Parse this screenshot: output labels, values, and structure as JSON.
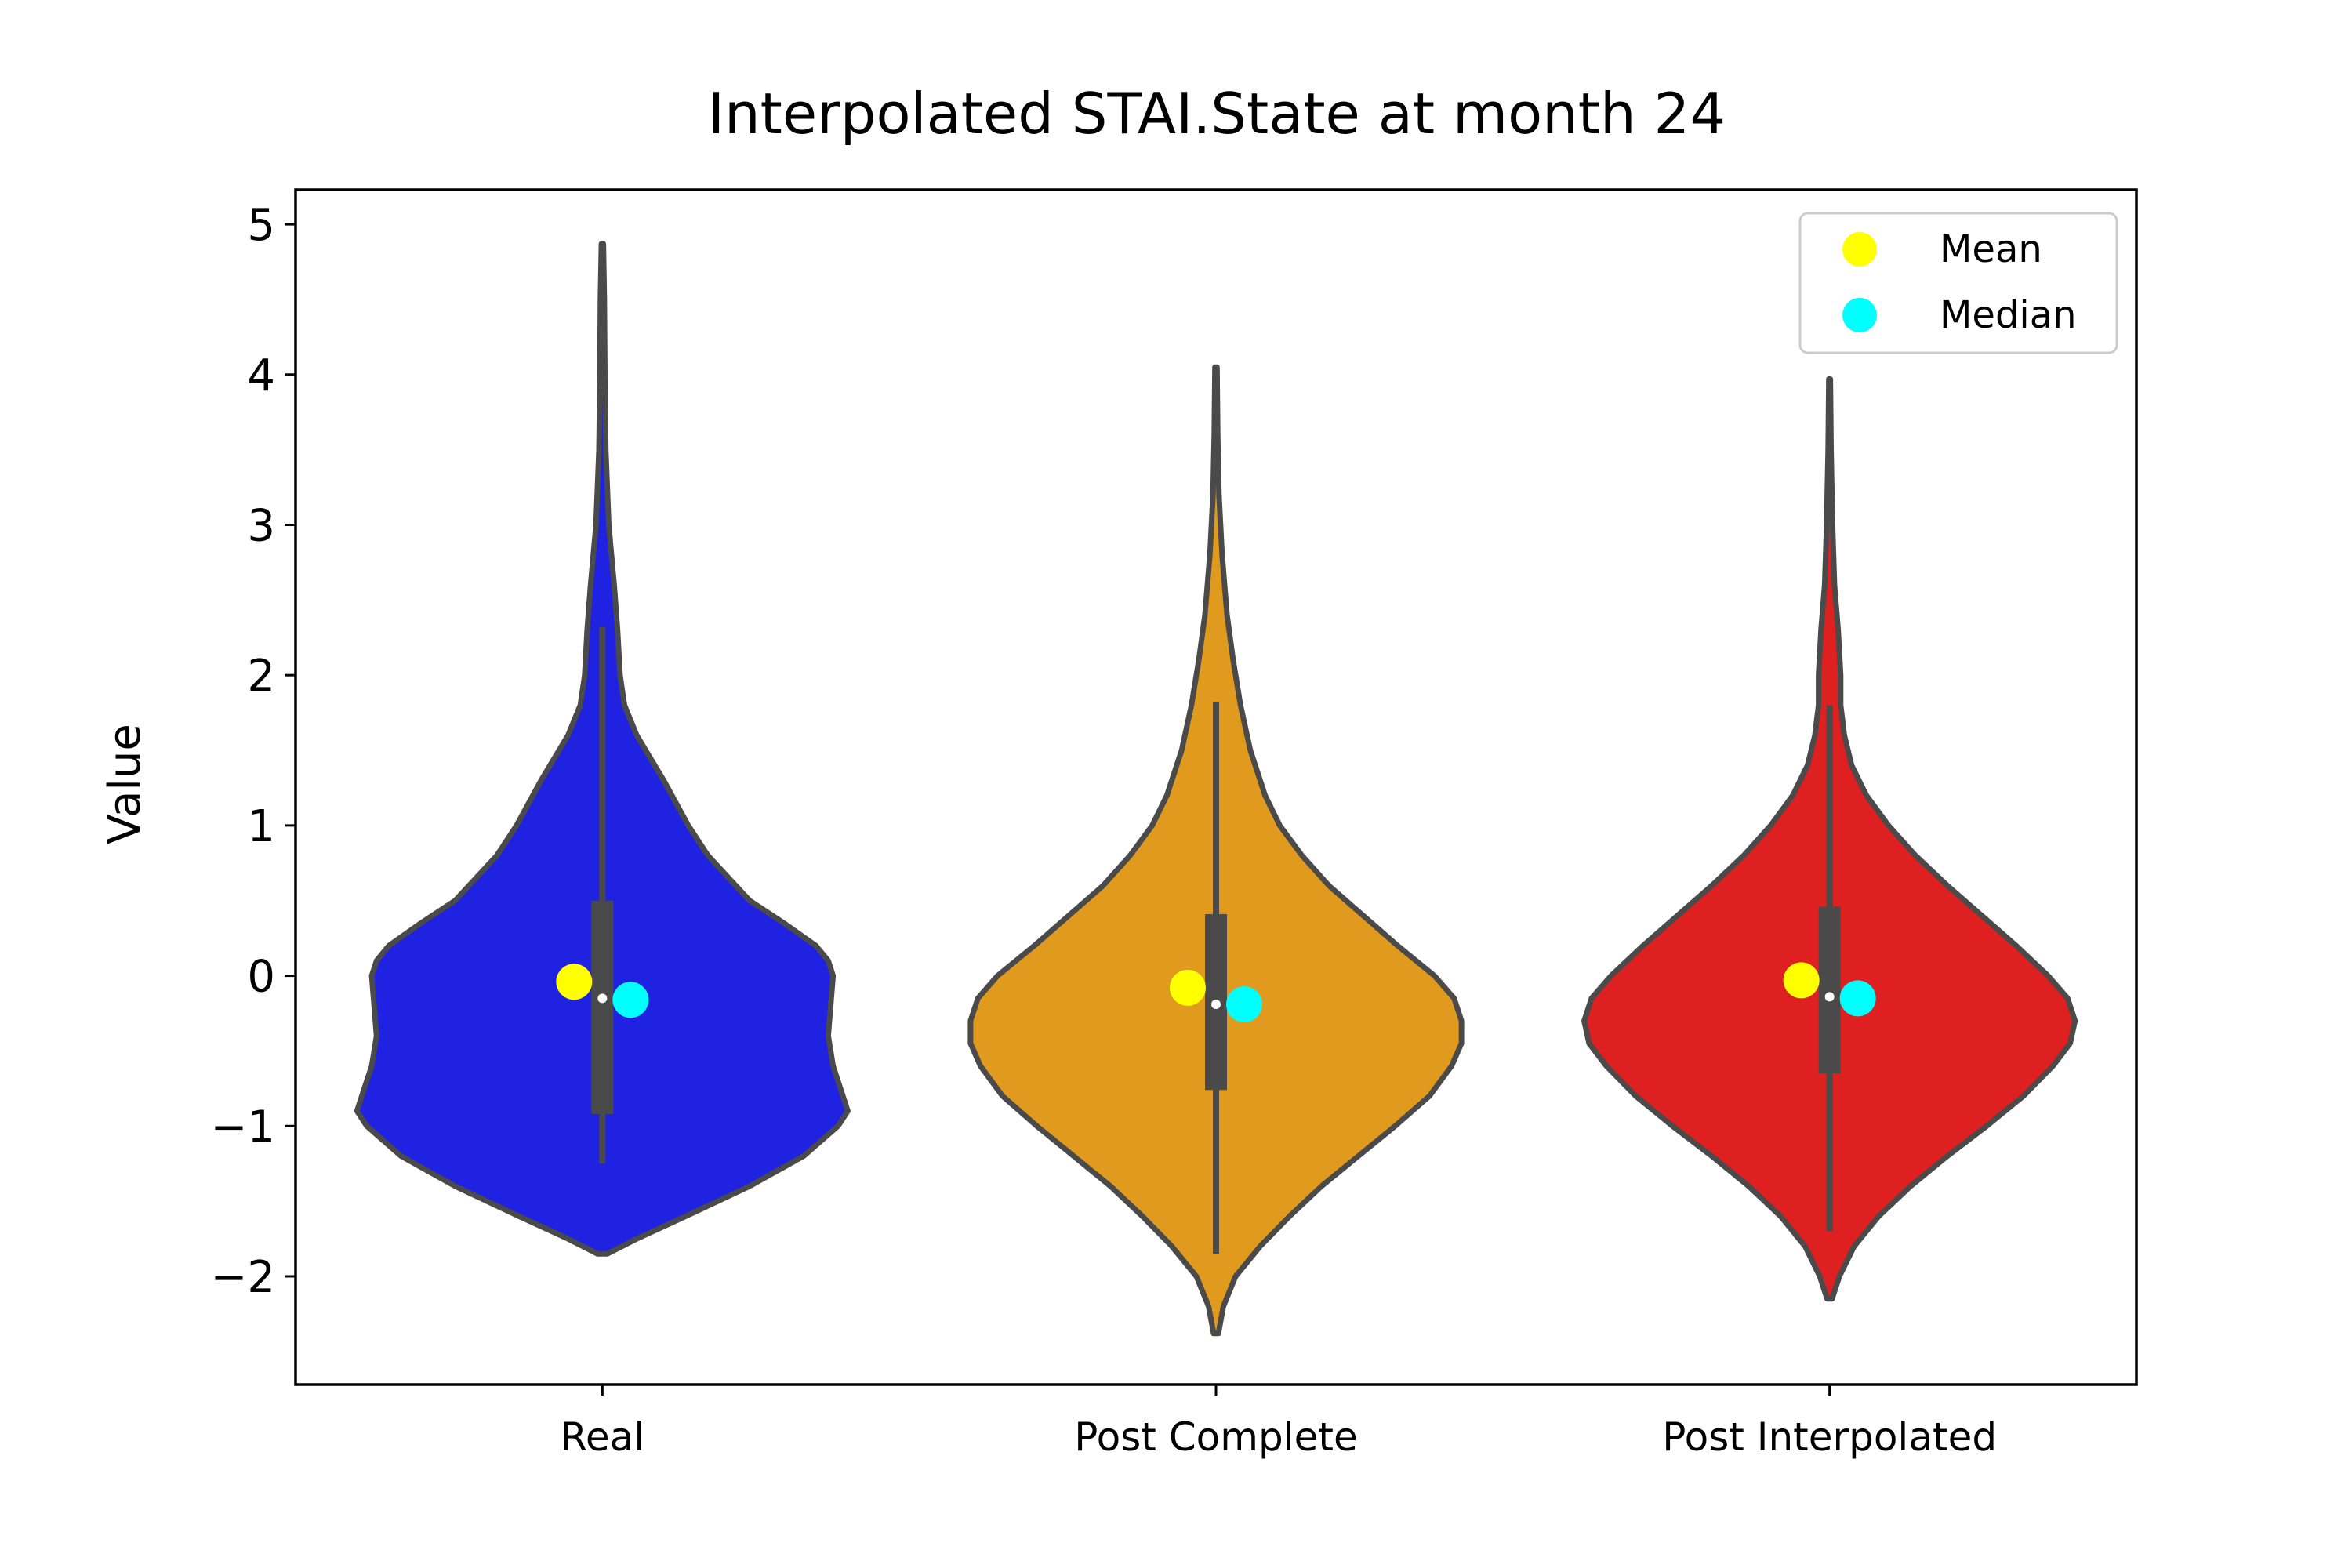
{
  "chart_data": {
    "type": "violin",
    "title": "Interpolated STAI.State at month 24",
    "xlabel": "",
    "ylabel": "Value",
    "ylim": [
      -2.72,
      5.23
    ],
    "yticks": [
      -2,
      -1,
      0,
      1,
      2,
      3,
      4,
      5
    ],
    "ytick_labels": [
      "−2",
      "−1",
      "0",
      "1",
      "2",
      "3",
      "4",
      "5"
    ],
    "categories": [
      "Real",
      "Post Complete",
      "Post Interpolated"
    ],
    "grid": false,
    "legend": {
      "placement": "top-right",
      "entries": [
        {
          "label": "Mean",
          "color": "#ffff00"
        },
        {
          "label": "Median",
          "color": "#00ffff"
        }
      ]
    },
    "series": [
      {
        "category": "Real",
        "color": "#1f22e0",
        "min": -1.85,
        "max": 4.87,
        "whisker_low": -1.25,
        "whisker_high": 2.32,
        "q1": -0.92,
        "q3": 0.5,
        "median": -0.15,
        "mean_marker": -0.04,
        "median_marker": -0.16,
        "density": [
          [
            -1.85,
            0.02
          ],
          [
            -1.75,
            0.14
          ],
          [
            -1.6,
            0.34
          ],
          [
            -1.4,
            0.6
          ],
          [
            -1.2,
            0.82
          ],
          [
            -1.0,
            0.96
          ],
          [
            -0.9,
            1.0
          ],
          [
            -0.8,
            0.98
          ],
          [
            -0.6,
            0.94
          ],
          [
            -0.4,
            0.92
          ],
          [
            -0.2,
            0.93
          ],
          [
            0.0,
            0.94
          ],
          [
            0.1,
            0.92
          ],
          [
            0.2,
            0.87
          ],
          [
            0.35,
            0.74
          ],
          [
            0.5,
            0.6
          ],
          [
            0.8,
            0.43
          ],
          [
            1.0,
            0.35
          ],
          [
            1.3,
            0.25
          ],
          [
            1.6,
            0.14
          ],
          [
            1.8,
            0.09
          ],
          [
            2.0,
            0.072
          ],
          [
            2.3,
            0.062
          ],
          [
            2.6,
            0.048
          ],
          [
            3.0,
            0.026
          ],
          [
            3.5,
            0.014
          ],
          [
            4.0,
            0.01
          ],
          [
            4.5,
            0.008
          ],
          [
            4.87,
            0.004
          ]
        ]
      },
      {
        "category": "Post Complete",
        "color": "#e09b1f",
        "min": -2.38,
        "max": 4.05,
        "whisker_low": -1.85,
        "whisker_high": 1.82,
        "q1": -0.76,
        "q3": 0.41,
        "median": -0.19,
        "mean_marker": -0.08,
        "median_marker": -0.19,
        "density": [
          [
            -2.38,
            0.01
          ],
          [
            -2.2,
            0.03
          ],
          [
            -2.0,
            0.08
          ],
          [
            -1.8,
            0.18
          ],
          [
            -1.6,
            0.3
          ],
          [
            -1.4,
            0.43
          ],
          [
            -1.2,
            0.58
          ],
          [
            -1.0,
            0.73
          ],
          [
            -0.8,
            0.87
          ],
          [
            -0.6,
            0.96
          ],
          [
            -0.45,
            1.0
          ],
          [
            -0.3,
            1.0
          ],
          [
            -0.15,
            0.97
          ],
          [
            0.0,
            0.89
          ],
          [
            0.2,
            0.74
          ],
          [
            0.4,
            0.6
          ],
          [
            0.6,
            0.46
          ],
          [
            0.8,
            0.35
          ],
          [
            1.0,
            0.26
          ],
          [
            1.2,
            0.2
          ],
          [
            1.5,
            0.14
          ],
          [
            1.8,
            0.1
          ],
          [
            2.1,
            0.07
          ],
          [
            2.4,
            0.045
          ],
          [
            2.8,
            0.025
          ],
          [
            3.2,
            0.012
          ],
          [
            3.6,
            0.007
          ],
          [
            4.05,
            0.004
          ]
        ]
      },
      {
        "category": "Post Interpolated",
        "color": "#de2020",
        "min": -2.15,
        "max": 3.97,
        "whisker_low": -1.7,
        "whisker_high": 1.8,
        "q1": -0.65,
        "q3": 0.46,
        "median": -0.14,
        "mean_marker": -0.03,
        "median_marker": -0.15,
        "density": [
          [
            -2.15,
            0.01
          ],
          [
            -2.0,
            0.04
          ],
          [
            -1.8,
            0.1
          ],
          [
            -1.6,
            0.2
          ],
          [
            -1.4,
            0.33
          ],
          [
            -1.2,
            0.48
          ],
          [
            -1.0,
            0.64
          ],
          [
            -0.8,
            0.79
          ],
          [
            -0.6,
            0.91
          ],
          [
            -0.45,
            0.98
          ],
          [
            -0.3,
            1.0
          ],
          [
            -0.15,
            0.97
          ],
          [
            0.0,
            0.89
          ],
          [
            0.2,
            0.76
          ],
          [
            0.4,
            0.62
          ],
          [
            0.6,
            0.48
          ],
          [
            0.8,
            0.35
          ],
          [
            1.0,
            0.24
          ],
          [
            1.2,
            0.15
          ],
          [
            1.4,
            0.09
          ],
          [
            1.6,
            0.06
          ],
          [
            1.8,
            0.045
          ],
          [
            2.0,
            0.045
          ],
          [
            2.3,
            0.035
          ],
          [
            2.6,
            0.02
          ],
          [
            3.0,
            0.012
          ],
          [
            3.5,
            0.006
          ],
          [
            3.97,
            0.003
          ]
        ]
      }
    ]
  }
}
